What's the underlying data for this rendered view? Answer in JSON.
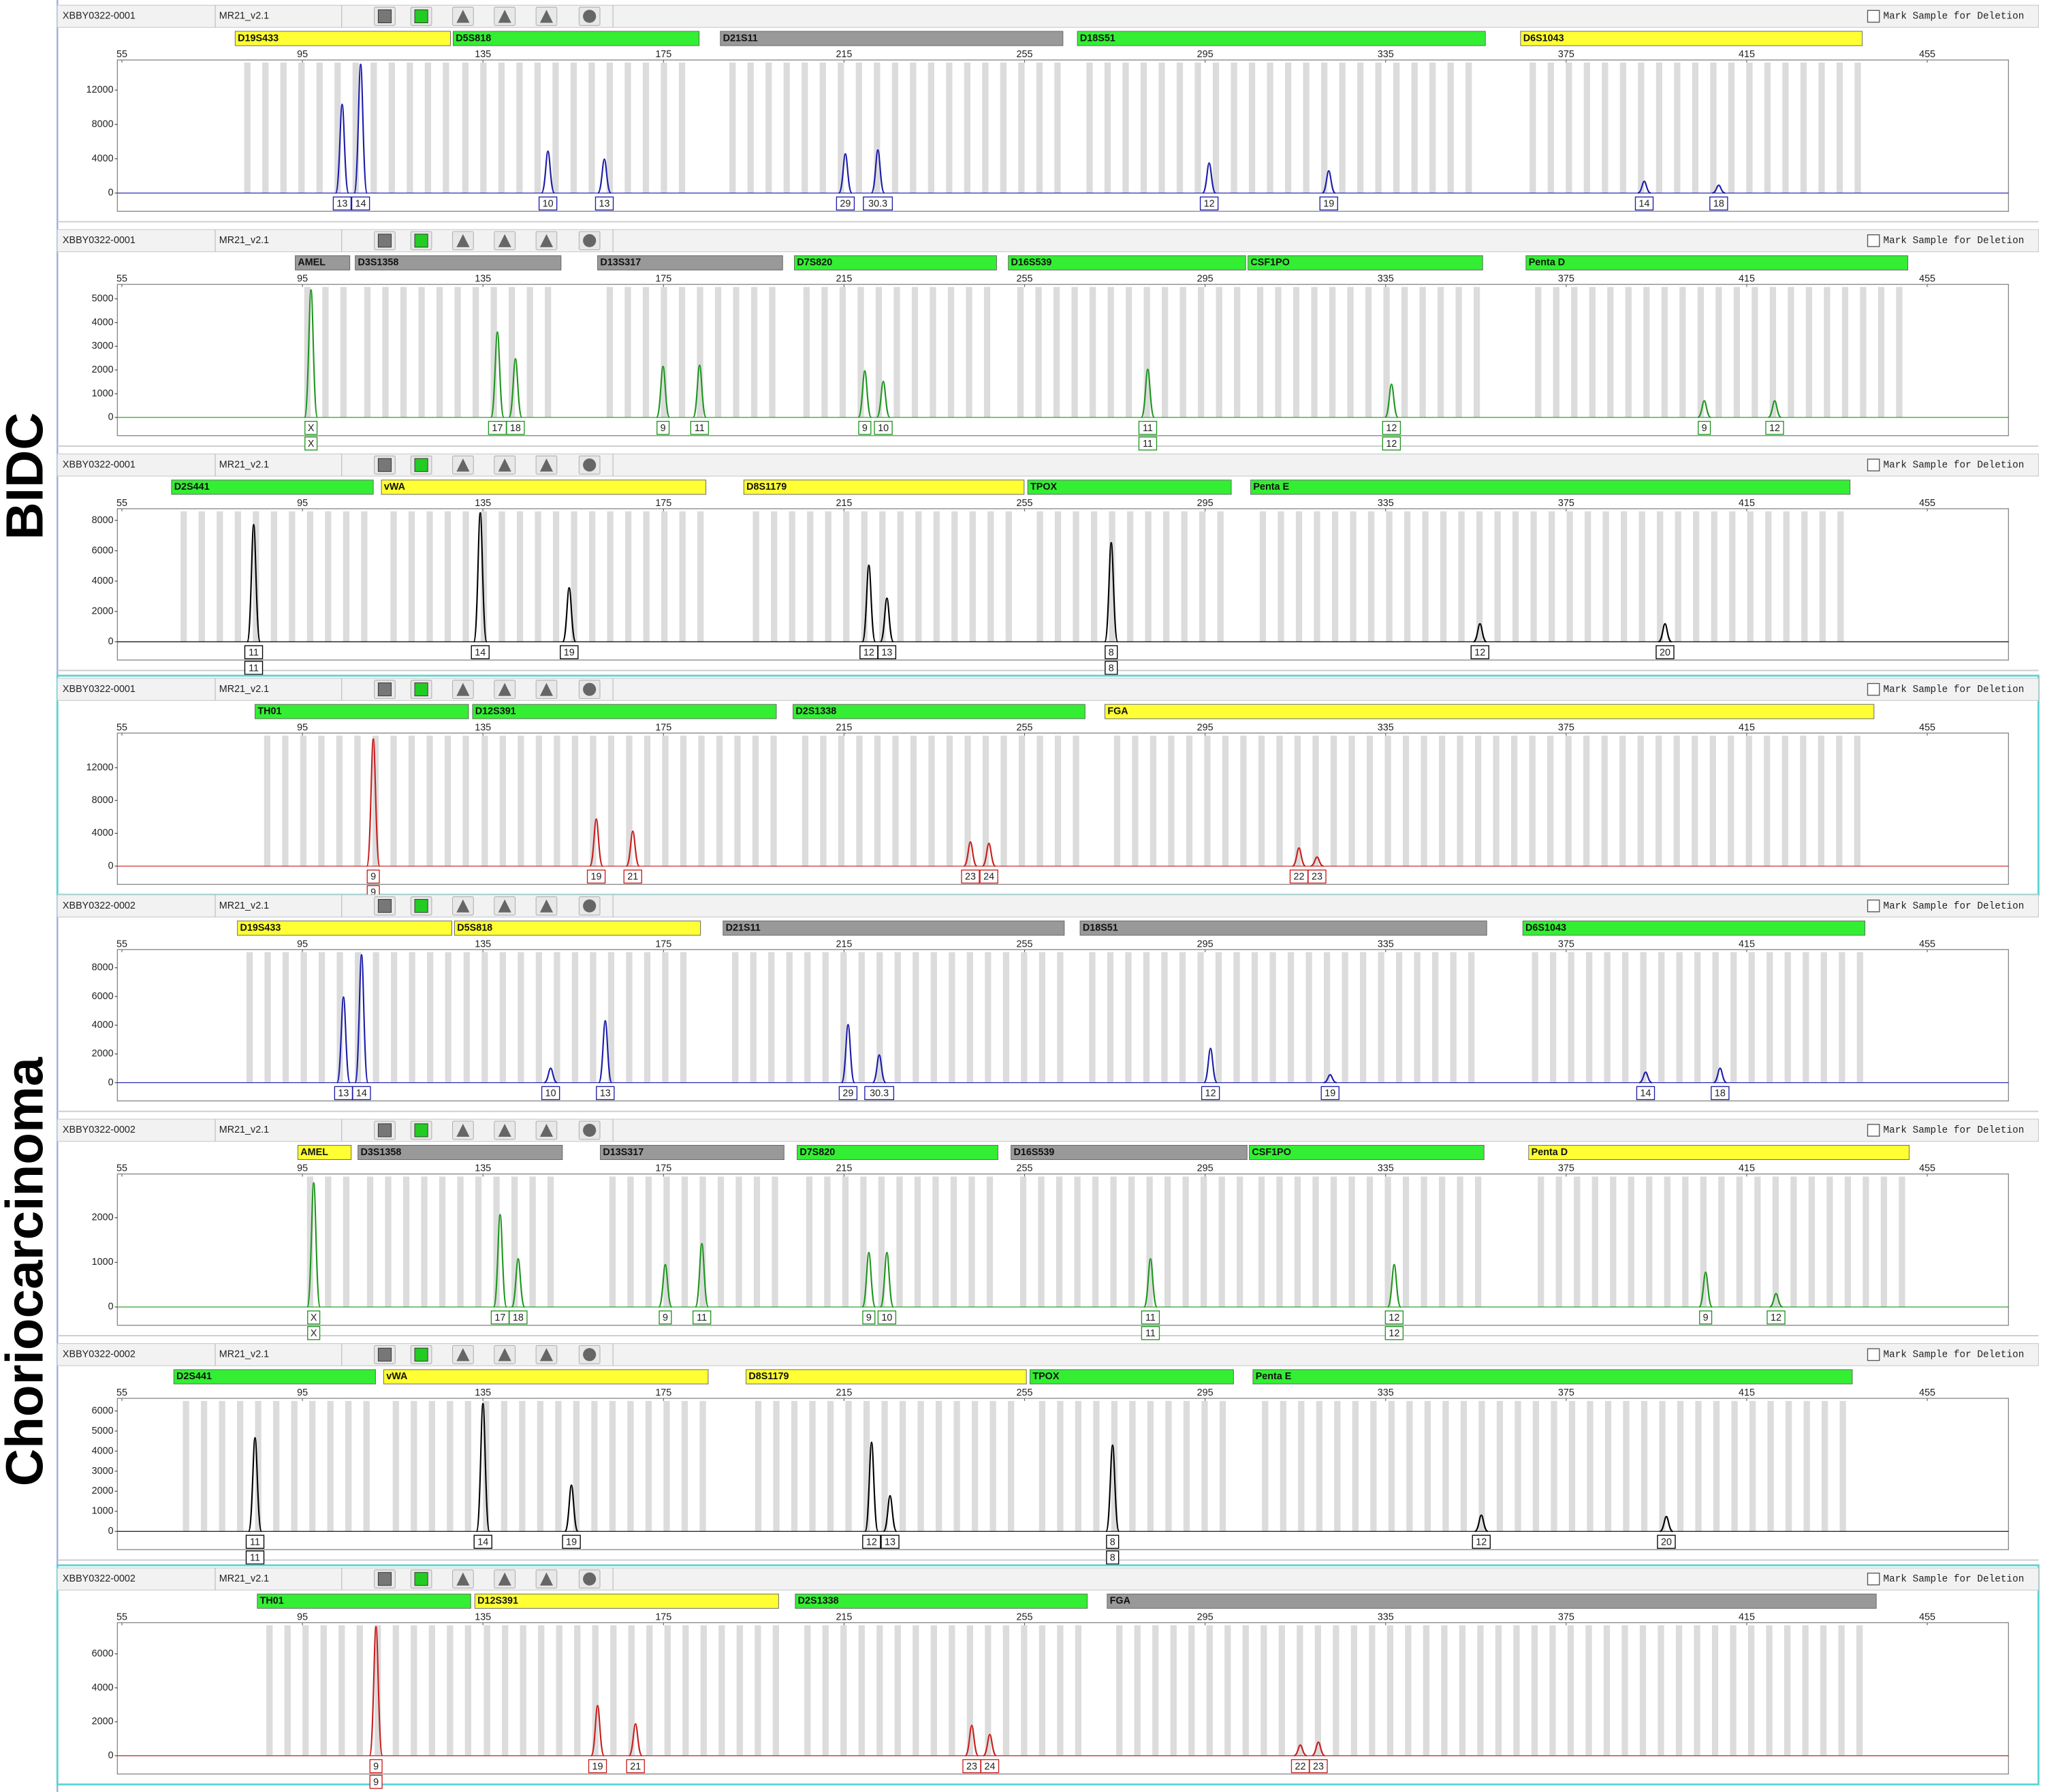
{
  "groups": [
    {
      "label": "BIDC"
    },
    {
      "label": "Choriocarcinoma"
    }
  ],
  "chart_data": [
    {
      "type": "electropherogram",
      "sample": "XBBY0322-0001",
      "kit": "MR21_v2.1",
      "deletion_label": "Mark Sample for Deletion",
      "selected": false,
      "peak_color": "#1c1caa",
      "loci": [
        {
          "name": "D19S433",
          "color": "#ffff33",
          "start": 80.1,
          "end": 127.8
        },
        {
          "name": "D5S818",
          "color": "#33ee33",
          "start": 128.4,
          "end": 182.9
        },
        {
          "name": "D21S11",
          "color": "#999999",
          "start": 187.6,
          "end": 263.5
        },
        {
          "name": "D18S51",
          "color": "#33ee33",
          "start": 266.7,
          "end": 357.1
        },
        {
          "name": "D6S1043",
          "color": "#ffff33",
          "start": 364.9,
          "end": 440.6
        }
      ],
      "xlim": [
        54,
        473
      ],
      "xticks": [
        55,
        95,
        135,
        175,
        215,
        255,
        295,
        335,
        375,
        415,
        455
      ],
      "ylim": [
        0,
        15200
      ],
      "yticks": [
        0,
        4000,
        8000,
        12000
      ],
      "peaks": {
        "x": [
          103.8,
          107.9,
          149.4,
          161.9,
          215.3,
          222.5,
          295.9,
          322.4,
          392.3,
          408.8
        ],
        "values": [
          10340,
          15000,
          4870,
          3950,
          4560,
          5020,
          3500,
          2590,
          1370,
          910
        ],
        "alleles": [
          [
            "13"
          ],
          [
            "14"
          ],
          [
            "10"
          ],
          [
            "13"
          ],
          [
            "29"
          ],
          [
            "30.3"
          ],
          [
            "12"
          ],
          [
            "19"
          ],
          [
            "14"
          ],
          [
            "18"
          ]
        ]
      }
    },
    {
      "type": "electropherogram",
      "sample": "XBBY0322-0001",
      "kit": "MR21_v2.1",
      "deletion_label": "Mark Sample for Deletion",
      "selected": false,
      "peak_color": "#1e961e",
      "loci": [
        {
          "name": "AMEL",
          "color": "#999999",
          "start": 93.4,
          "end": 105.5
        },
        {
          "name": "D3S1358",
          "color": "#999999",
          "start": 106.7,
          "end": 152.3
        },
        {
          "name": "D13S317",
          "color": "#999999",
          "start": 160.4,
          "end": 201.4
        },
        {
          "name": "D7S820",
          "color": "#33ee33",
          "start": 204.0,
          "end": 248.8
        },
        {
          "name": "D16S539",
          "color": "#33ee33",
          "start": 251.4,
          "end": 304.0
        },
        {
          "name": "CSF1PO",
          "color": "#33ee33",
          "start": 304.5,
          "end": 356.5
        },
        {
          "name": "Penta D",
          "color": "#33ee33",
          "start": 366.1,
          "end": 450.7
        }
      ],
      "xlim": [
        54,
        473
      ],
      "xticks": [
        55,
        95,
        135,
        175,
        215,
        255,
        295,
        335,
        375,
        415,
        455
      ],
      "ylim": [
        0,
        5500
      ],
      "yticks": [
        0,
        1000,
        2000,
        3000,
        4000,
        5000
      ],
      "peaks": {
        "x": [
          96.9,
          138.2,
          142.2,
          174.9,
          183.0,
          219.6,
          223.7,
          282.3,
          336.3,
          405.6,
          421.2
        ],
        "values": [
          5380,
          3600,
          2470,
          2150,
          2200,
          1960,
          1520,
          2030,
          1400,
          700,
          700
        ],
        "alleles": [
          [
            "X",
            "X"
          ],
          [
            "17"
          ],
          [
            "18"
          ],
          [
            "9"
          ],
          [
            "11"
          ],
          [
            "9"
          ],
          [
            "10"
          ],
          [
            "11",
            "11"
          ],
          [
            "12",
            "12"
          ],
          [
            "9"
          ],
          [
            "12"
          ]
        ]
      }
    },
    {
      "type": "electropherogram",
      "sample": "XBBY0322-0001",
      "kit": "MR21_v2.1",
      "deletion_label": "Mark Sample for Deletion",
      "selected": false,
      "peak_color": "#000000",
      "loci": [
        {
          "name": "D2S441",
          "color": "#33ee33",
          "start": 66.0,
          "end": 110.7
        },
        {
          "name": "vWA",
          "color": "#ffff33",
          "start": 112.5,
          "end": 184.4
        },
        {
          "name": "D8S1179",
          "color": "#ffff33",
          "start": 192.8,
          "end": 254.9
        },
        {
          "name": "TPOX",
          "color": "#33ee33",
          "start": 255.7,
          "end": 300.8
        },
        {
          "name": "Penta E",
          "color": "#33ee33",
          "start": 305.1,
          "end": 437.9
        }
      ],
      "xlim": [
        54,
        473
      ],
      "xticks": [
        55,
        95,
        135,
        175,
        215,
        255,
        295,
        335,
        375,
        415,
        455
      ],
      "ylim": [
        0,
        8600
      ],
      "yticks": [
        0,
        2000,
        4000,
        6000,
        8000
      ],
      "peaks": {
        "x": [
          84.2,
          134.4,
          154.1,
          220.5,
          224.5,
          274.2,
          355.9,
          396.9
        ],
        "values": [
          7720,
          8500,
          3560,
          5050,
          2870,
          6530,
          1190,
          1190
        ],
        "alleles": [
          [
            "11",
            "11"
          ],
          [
            "14"
          ],
          [
            "19"
          ],
          [
            "12"
          ],
          [
            "13"
          ],
          [
            "8",
            "8"
          ],
          [
            "12"
          ],
          [
            "20"
          ]
        ]
      }
    },
    {
      "type": "electropherogram",
      "sample": "XBBY0322-0001",
      "kit": "MR21_v2.1",
      "deletion_label": "Mark Sample for Deletion",
      "selected": true,
      "peak_color": "#c81e1e",
      "loci": [
        {
          "name": "TH01",
          "color": "#33ee33",
          "start": 84.5,
          "end": 131.8
        },
        {
          "name": "D12S391",
          "color": "#33ee33",
          "start": 132.7,
          "end": 200.0
        },
        {
          "name": "D2S1338",
          "color": "#33ee33",
          "start": 203.7,
          "end": 268.4
        },
        {
          "name": "FGA",
          "color": "#ffff33",
          "start": 272.8,
          "end": 443.2
        }
      ],
      "xlim": [
        54,
        473
      ],
      "xticks": [
        55,
        95,
        135,
        175,
        215,
        255,
        295,
        335,
        375,
        415,
        455
      ],
      "ylim": [
        0,
        15900
      ],
      "yticks": [
        0,
        4000,
        8000,
        12000
      ],
      "peaks": {
        "x": [
          110.7,
          160.1,
          168.2,
          243.0,
          247.1,
          315.8,
          319.8
        ],
        "values": [
          15500,
          5740,
          4260,
          2960,
          2780,
          2220,
          1110
        ],
        "alleles": [
          [
            "9",
            "9"
          ],
          [
            "19"
          ],
          [
            "21"
          ],
          [
            "23"
          ],
          [
            "24"
          ],
          [
            "22"
          ],
          [
            "23"
          ]
        ]
      }
    },
    {
      "type": "electropherogram",
      "sample": "XBBY0322-0002",
      "kit": "MR21_v2.1",
      "deletion_label": "Mark Sample for Deletion",
      "selected": false,
      "peak_color": "#1c1caa",
      "loci": [
        {
          "name": "D19S433",
          "color": "#ffff33",
          "start": 80.6,
          "end": 128.1
        },
        {
          "name": "D5S818",
          "color": "#ffff33",
          "start": 128.7,
          "end": 183.2
        },
        {
          "name": "D21S11",
          "color": "#999999",
          "start": 188.2,
          "end": 263.8
        },
        {
          "name": "D18S51",
          "color": "#999999",
          "start": 267.3,
          "end": 357.4
        },
        {
          "name": "D6S1043",
          "color": "#33ee33",
          "start": 365.4,
          "end": 441.2
        }
      ],
      "xlim": [
        54,
        473
      ],
      "xticks": [
        55,
        95,
        135,
        175,
        215,
        255,
        295,
        335,
        375,
        415,
        455
      ],
      "ylim": [
        0,
        9080
      ],
      "yticks": [
        0,
        2000,
        4000,
        6000,
        8000
      ],
      "peaks": {
        "x": [
          104.1,
          108.1,
          150.0,
          162.1,
          215.9,
          222.8,
          296.2,
          322.7,
          392.6,
          409.1
        ],
        "values": [
          5960,
          8900,
          1010,
          4310,
          4040,
          1930,
          2390,
          550,
          730,
          1010
        ],
        "alleles": [
          [
            "13"
          ],
          [
            "14"
          ],
          [
            "10"
          ],
          [
            "13"
          ],
          [
            "29"
          ],
          [
            "30.3"
          ],
          [
            "12"
          ],
          [
            "19"
          ],
          [
            "14"
          ],
          [
            "18"
          ]
        ]
      }
    },
    {
      "type": "electropherogram",
      "sample": "XBBY0322-0002",
      "kit": "MR21_v2.1",
      "deletion_label": "Mark Sample for Deletion",
      "selected": false,
      "peak_color": "#1e961e",
      "loci": [
        {
          "name": "AMEL",
          "color": "#ffff33",
          "start": 94.0,
          "end": 105.8
        },
        {
          "name": "D3S1358",
          "color": "#999999",
          "start": 107.3,
          "end": 152.6
        },
        {
          "name": "D13S317",
          "color": "#999999",
          "start": 161.0,
          "end": 201.7
        },
        {
          "name": "D7S820",
          "color": "#33ee33",
          "start": 204.6,
          "end": 249.1
        },
        {
          "name": "D16S539",
          "color": "#999999",
          "start": 252.0,
          "end": 304.3
        },
        {
          "name": "CSF1PO",
          "color": "#33ee33",
          "start": 304.8,
          "end": 356.8
        },
        {
          "name": "Penta D",
          "color": "#ffff33",
          "start": 366.7,
          "end": 451.0
        }
      ],
      "xlim": [
        54,
        473
      ],
      "xticks": [
        55,
        95,
        135,
        175,
        215,
        255,
        295,
        335,
        375,
        415,
        455
      ],
      "ylim": [
        0,
        2920
      ],
      "yticks": [
        0,
        1000,
        2000
      ],
      "peaks": {
        "x": [
          97.5,
          138.8,
          142.8,
          175.4,
          183.5,
          220.5,
          224.5,
          282.9,
          336.9,
          405.9,
          421.5
        ],
        "values": [
          2780,
          2070,
          1080,
          950,
          1420,
          1220,
          1220,
          1080,
          950,
          780,
          300
        ],
        "alleles": [
          [
            "X",
            "X"
          ],
          [
            "17"
          ],
          [
            "18"
          ],
          [
            "9"
          ],
          [
            "11"
          ],
          [
            "9"
          ],
          [
            "10"
          ],
          [
            "11",
            "11"
          ],
          [
            "12",
            "12"
          ],
          [
            "9"
          ],
          [
            "12"
          ]
        ]
      }
    },
    {
      "type": "electropherogram",
      "sample": "XBBY0322-0002",
      "kit": "MR21_v2.1",
      "deletion_label": "Mark Sample for Deletion",
      "selected": false,
      "peak_color": "#000000",
      "loci": [
        {
          "name": "D2S441",
          "color": "#33ee33",
          "start": 66.5,
          "end": 111.2
        },
        {
          "name": "vWA",
          "color": "#ffff33",
          "start": 113.0,
          "end": 184.9
        },
        {
          "name": "D8S1179",
          "color": "#ffff33",
          "start": 193.3,
          "end": 255.4
        },
        {
          "name": "TPOX",
          "color": "#33ee33",
          "start": 256.2,
          "end": 301.3
        },
        {
          "name": "Penta E",
          "color": "#33ee33",
          "start": 305.6,
          "end": 438.4
        }
      ],
      "xlim": [
        54,
        473
      ],
      "xticks": [
        55,
        95,
        135,
        175,
        215,
        255,
        295,
        335,
        375,
        415,
        455
      ],
      "ylim": [
        0,
        6500
      ],
      "yticks": [
        0,
        1000,
        2000,
        3000,
        4000,
        5000,
        6000
      ],
      "peaks": {
        "x": [
          84.5,
          135.0,
          154.6,
          221.1,
          225.2,
          274.5,
          356.2,
          397.2
        ],
        "values": [
          4670,
          6370,
          2300,
          4440,
          1780,
          4300,
          810,
          740
        ],
        "alleles": [
          [
            "11",
            "11"
          ],
          [
            "14"
          ],
          [
            "19"
          ],
          [
            "12"
          ],
          [
            "13"
          ],
          [
            "8",
            "8"
          ],
          [
            "12"
          ],
          [
            "20"
          ]
        ]
      }
    },
    {
      "type": "electropherogram",
      "sample": "XBBY0322-0002",
      "kit": "MR21_v2.1",
      "deletion_label": "Mark Sample for Deletion",
      "selected": true,
      "peak_color": "#c81e1e",
      "loci": [
        {
          "name": "TH01",
          "color": "#33ee33",
          "start": 85.0,
          "end": 132.3
        },
        {
          "name": "D12S391",
          "color": "#ffff33",
          "start": 133.2,
          "end": 200.5
        },
        {
          "name": "D2S1338",
          "color": "#33ee33",
          "start": 204.2,
          "end": 268.9
        },
        {
          "name": "FGA",
          "color": "#999999",
          "start": 273.3,
          "end": 443.7
        }
      ],
      "xlim": [
        54,
        473
      ],
      "xticks": [
        55,
        95,
        135,
        175,
        215,
        255,
        295,
        335,
        375,
        415,
        455
      ],
      "ylim": [
        0,
        7680
      ],
      "yticks": [
        0,
        2000,
        4000,
        6000
      ],
      "peaks": {
        "x": [
          111.3,
          160.4,
          168.8,
          243.3,
          247.3,
          316.1,
          320.1
        ],
        "values": [
          7600,
          2950,
          1880,
          1790,
          1250,
          630,
          800
        ],
        "alleles": [
          [
            "9",
            "9"
          ],
          [
            "19"
          ],
          [
            "21"
          ],
          [
            "23"
          ],
          [
            "24"
          ],
          [
            "22"
          ],
          [
            "23"
          ]
        ]
      }
    }
  ]
}
